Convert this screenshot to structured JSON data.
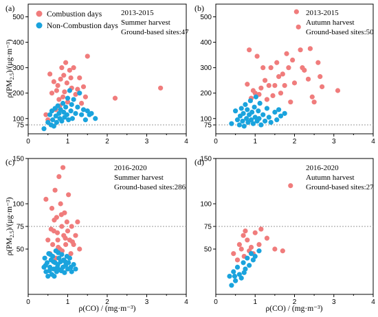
{
  "figure": {
    "xlabel": "ρ(CO) / (mg·m⁻³)",
    "ylabel_top": "ρ(PM2.5)/(μg·m⁻³)",
    "ylabel_bottom": "ρ(PM2.5)/(μg·m⁻³)",
    "legend": [
      {
        "label": "Combustion days",
        "color": "#f07c7c"
      },
      {
        "label": "Non-Combustion days",
        "color": "#1aa3dd"
      }
    ],
    "colors": {
      "combustion": "#f07c7c",
      "non_combustion": "#1aa3dd",
      "refline": "#9a9a9a"
    }
  },
  "chart_data": [
    {
      "type": "scatter",
      "panel": "(a)",
      "annotation": [
        "2013-2015",
        "Summer harvest",
        "Ground-based sites:47"
      ],
      "xlim": [
        0,
        4
      ],
      "ylim": [
        40,
        550
      ],
      "xticks": [
        0,
        1,
        2,
        3,
        4
      ],
      "yticks": [
        75,
        100,
        200,
        300,
        400,
        500
      ],
      "reference_y": 75,
      "series": [
        {
          "name": "Combustion days",
          "points": [
            [
              0.45,
              115
            ],
            [
              0.5,
              95
            ],
            [
              0.55,
              275
            ],
            [
              0.6,
              200
            ],
            [
              0.65,
              245
            ],
            [
              0.7,
              135
            ],
            [
              0.72,
              210
            ],
            [
              0.75,
              230
            ],
            [
              0.78,
              175
            ],
            [
              0.8,
              150
            ],
            [
              0.82,
              255
            ],
            [
              0.85,
              300
            ],
            [
              0.88,
              185
            ],
            [
              0.9,
              270
            ],
            [
              0.92,
              205
            ],
            [
              0.95,
              320
            ],
            [
              0.98,
              240
            ],
            [
              1.0,
              165
            ],
            [
              1.05,
              290
            ],
            [
              1.08,
              260
            ],
            [
              1.1,
              220
            ],
            [
              1.15,
              300
            ],
            [
              1.2,
              195
            ],
            [
              1.25,
              215
            ],
            [
              1.3,
              260
            ],
            [
              1.35,
              160
            ],
            [
              1.4,
              225
            ],
            [
              1.45,
              185
            ],
            [
              1.5,
              345
            ],
            [
              2.2,
              180
            ],
            [
              3.35,
              220
            ]
          ]
        },
        {
          "name": "Non-Combustion days",
          "points": [
            [
              0.4,
              60
            ],
            [
              0.5,
              85
            ],
            [
              0.55,
              115
            ],
            [
              0.58,
              75
            ],
            [
              0.6,
              130
            ],
            [
              0.62,
              95
            ],
            [
              0.65,
              70
            ],
            [
              0.68,
              140
            ],
            [
              0.7,
              110
            ],
            [
              0.72,
              85
            ],
            [
              0.75,
              150
            ],
            [
              0.78,
              120
            ],
            [
              0.8,
              100
            ],
            [
              0.82,
              135
            ],
            [
              0.85,
              90
            ],
            [
              0.88,
              160
            ],
            [
              0.9,
              125
            ],
            [
              0.92,
              105
            ],
            [
              0.95,
              145
            ],
            [
              0.98,
              115
            ],
            [
              1.0,
              180
            ],
            [
              1.02,
              95
            ],
            [
              1.05,
              210
            ],
            [
              1.08,
              130
            ],
            [
              1.1,
              155
            ],
            [
              1.12,
              100
            ],
            [
              1.15,
              175
            ],
            [
              1.2,
              120
            ],
            [
              1.25,
              145
            ],
            [
              1.3,
              200
            ],
            [
              1.35,
              115
            ],
            [
              1.4,
              135
            ],
            [
              1.45,
              95
            ],
            [
              1.5,
              130
            ],
            [
              1.55,
              115
            ],
            [
              1.6,
              120
            ],
            [
              1.7,
              100
            ]
          ]
        }
      ]
    },
    {
      "type": "scatter",
      "panel": "(b)",
      "annotation": [
        "2013-2015",
        "Autumn harvest",
        "Ground-based sites:50"
      ],
      "xlim": [
        0,
        4
      ],
      "ylim": [
        40,
        550
      ],
      "xticks": [
        0,
        1,
        2,
        3,
        4
      ],
      "yticks": [
        75,
        100,
        200,
        300,
        400,
        500
      ],
      "reference_y": 75,
      "series": [
        {
          "name": "Combustion days",
          "points": [
            [
              0.8,
              235
            ],
            [
              0.85,
              370
            ],
            [
              0.9,
              180
            ],
            [
              0.95,
              210
            ],
            [
              1.0,
              200
            ],
            [
              1.05,
              345
            ],
            [
              1.1,
              195
            ],
            [
              1.15,
              220
            ],
            [
              1.2,
              300
            ],
            [
              1.25,
              250
            ],
            [
              1.3,
              175
            ],
            [
              1.35,
              230
            ],
            [
              1.4,
              300
            ],
            [
              1.45,
              190
            ],
            [
              1.5,
              230
            ],
            [
              1.55,
              320
            ],
            [
              1.6,
              265
            ],
            [
              1.65,
              200
            ],
            [
              1.7,
              275
            ],
            [
              1.75,
              230
            ],
            [
              1.8,
              355
            ],
            [
              1.85,
              300
            ],
            [
              1.9,
              165
            ],
            [
              1.95,
              330
            ],
            [
              2.0,
              240
            ],
            [
              2.05,
              520
            ],
            [
              2.1,
              460
            ],
            [
              2.15,
              370
            ],
            [
              2.2,
              300
            ],
            [
              2.25,
              290
            ],
            [
              2.35,
              255
            ],
            [
              2.4,
              375
            ],
            [
              2.45,
              185
            ],
            [
              2.5,
              165
            ],
            [
              2.6,
              320
            ],
            [
              2.65,
              265
            ],
            [
              2.7,
              225
            ],
            [
              3.1,
              210
            ]
          ]
        },
        {
          "name": "Non-Combustion days",
          "points": [
            [
              0.4,
              80
            ],
            [
              0.5,
              130
            ],
            [
              0.55,
              95
            ],
            [
              0.6,
              75
            ],
            [
              0.62,
              110
            ],
            [
              0.65,
              140
            ],
            [
              0.68,
              90
            ],
            [
              0.7,
              120
            ],
            [
              0.72,
              70
            ],
            [
              0.75,
              155
            ],
            [
              0.78,
              100
            ],
            [
              0.8,
              135
            ],
            [
              0.82,
              85
            ],
            [
              0.85,
              115
            ],
            [
              0.88,
              170
            ],
            [
              0.9,
              95
            ],
            [
              0.92,
              125
            ],
            [
              0.95,
              80
            ],
            [
              0.98,
              145
            ],
            [
              1.0,
              105
            ],
            [
              1.02,
              185
            ],
            [
              1.05,
              90
            ],
            [
              1.08,
              130
            ],
            [
              1.1,
              100
            ],
            [
              1.12,
              160
            ],
            [
              1.15,
              75
            ],
            [
              1.2,
              115
            ],
            [
              1.25,
              90
            ],
            [
              1.3,
              140
            ],
            [
              1.35,
              105
            ],
            [
              1.4,
              85
            ],
            [
              1.5,
              125
            ],
            [
              1.55,
              95
            ],
            [
              1.6,
              135
            ],
            [
              1.65,
              110
            ],
            [
              1.75,
              120
            ]
          ]
        }
      ]
    },
    {
      "type": "scatter",
      "panel": "(c)",
      "annotation": [
        "2016-2020",
        "Summer harvest",
        "Ground-based sites:286"
      ],
      "xlim": [
        0,
        4
      ],
      "ylim": [
        0,
        150
      ],
      "xticks": [
        0,
        1,
        2,
        3,
        4
      ],
      "yticks": [
        50,
        75,
        100,
        150
      ],
      "reference_y": 75,
      "series": [
        {
          "name": "Combustion days",
          "points": [
            [
              0.45,
              105
            ],
            [
              0.5,
              60
            ],
            [
              0.55,
              45
            ],
            [
              0.6,
              95
            ],
            [
              0.62,
              55
            ],
            [
              0.65,
              70
            ],
            [
              0.68,
              115
            ],
            [
              0.7,
              40
            ],
            [
              0.72,
              85
            ],
            [
              0.75,
              60
            ],
            [
              0.78,
              130
            ],
            [
              0.8,
              50
            ],
            [
              0.82,
              100
            ],
            [
              0.85,
              75
            ],
            [
              0.88,
              140
            ],
            [
              0.9,
              65
            ],
            [
              0.92,
              90
            ],
            [
              0.95,
              55
            ],
            [
              0.98,
              80
            ],
            [
              1.0,
              70
            ],
            [
              1.02,
              110
            ],
            [
              1.05,
              60
            ],
            [
              1.08,
              45
            ],
            [
              1.1,
              75
            ],
            [
              1.15,
              55
            ],
            [
              1.2,
              65
            ],
            [
              1.25,
              80
            ],
            [
              1.3,
              50
            ],
            [
              0.66,
              82
            ],
            [
              0.74,
              68
            ],
            [
              0.84,
              88
            ],
            [
              0.94,
              62
            ],
            [
              0.58,
              72
            ],
            [
              0.86,
              48
            ],
            [
              0.76,
              52
            ],
            [
              1.12,
              58
            ]
          ]
        },
        {
          "name": "Non-Combustion days",
          "points": [
            [
              0.4,
              30
            ],
            [
              0.42,
              40
            ],
            [
              0.45,
              25
            ],
            [
              0.48,
              35
            ],
            [
              0.5,
              20
            ],
            [
              0.52,
              45
            ],
            [
              0.55,
              30
            ],
            [
              0.58,
              38
            ],
            [
              0.6,
              22
            ],
            [
              0.62,
              42
            ],
            [
              0.65,
              28
            ],
            [
              0.68,
              35
            ],
            [
              0.7,
              48
            ],
            [
              0.72,
              25
            ],
            [
              0.75,
              33
            ],
            [
              0.78,
              40
            ],
            [
              0.8,
              27
            ],
            [
              0.82,
              36
            ],
            [
              0.85,
              44
            ],
            [
              0.88,
              30
            ],
            [
              0.9,
              38
            ],
            [
              0.92,
              24
            ],
            [
              0.95,
              32
            ],
            [
              0.98,
              42
            ],
            [
              1.0,
              28
            ],
            [
              1.02,
              35
            ],
            [
              1.05,
              40
            ],
            [
              1.08,
              30
            ],
            [
              1.1,
              25
            ],
            [
              1.15,
              33
            ],
            [
              1.2,
              28
            ],
            [
              0.44,
              32
            ],
            [
              0.54,
              26
            ],
            [
              0.64,
              36
            ],
            [
              0.74,
              30
            ],
            [
              0.84,
              26
            ],
            [
              0.94,
              36
            ],
            [
              0.56,
              44
            ],
            [
              0.66,
              20
            ],
            [
              0.76,
              46
            ]
          ]
        }
      ]
    },
    {
      "type": "scatter",
      "panel": "(d)",
      "annotation": [
        "2016-2020",
        "Autumn harvest",
        "Ground-based sites:27"
      ],
      "xlim": [
        0,
        4
      ],
      "ylim": [
        0,
        150
      ],
      "xticks": [
        0,
        1,
        2,
        3,
        4
      ],
      "yticks": [
        50,
        75,
        100,
        150
      ],
      "reference_y": 75,
      "series": [
        {
          "name": "Combustion days",
          "points": [
            [
              0.45,
              45
            ],
            [
              0.55,
              38
            ],
            [
              0.6,
              55
            ],
            [
              0.65,
              50
            ],
            [
              0.7,
              65
            ],
            [
              0.72,
              42
            ],
            [
              0.75,
              70
            ],
            [
              0.8,
              60
            ],
            [
              0.85,
              48
            ],
            [
              0.9,
              52
            ],
            [
              0.95,
              45
            ],
            [
              1.0,
              68
            ],
            [
              1.1,
              55
            ],
            [
              1.15,
              72
            ],
            [
              1.3,
              62
            ],
            [
              1.5,
              50
            ],
            [
              1.7,
              48
            ],
            [
              1.9,
              120
            ]
          ]
        },
        {
          "name": "Non-Combustion days",
          "points": [
            [
              0.35,
              20
            ],
            [
              0.4,
              10
            ],
            [
              0.45,
              25
            ],
            [
              0.5,
              15
            ],
            [
              0.55,
              30
            ],
            [
              0.6,
              22
            ],
            [
              0.65,
              18
            ],
            [
              0.7,
              35
            ],
            [
              0.75,
              28
            ],
            [
              0.8,
              40
            ],
            [
              0.85,
              32
            ],
            [
              0.9,
              45
            ],
            [
              0.95,
              38
            ],
            [
              1.0,
              42
            ],
            [
              1.1,
              48
            ],
            [
              0.48,
              20
            ],
            [
              0.72,
              24
            ]
          ]
        }
      ]
    }
  ]
}
